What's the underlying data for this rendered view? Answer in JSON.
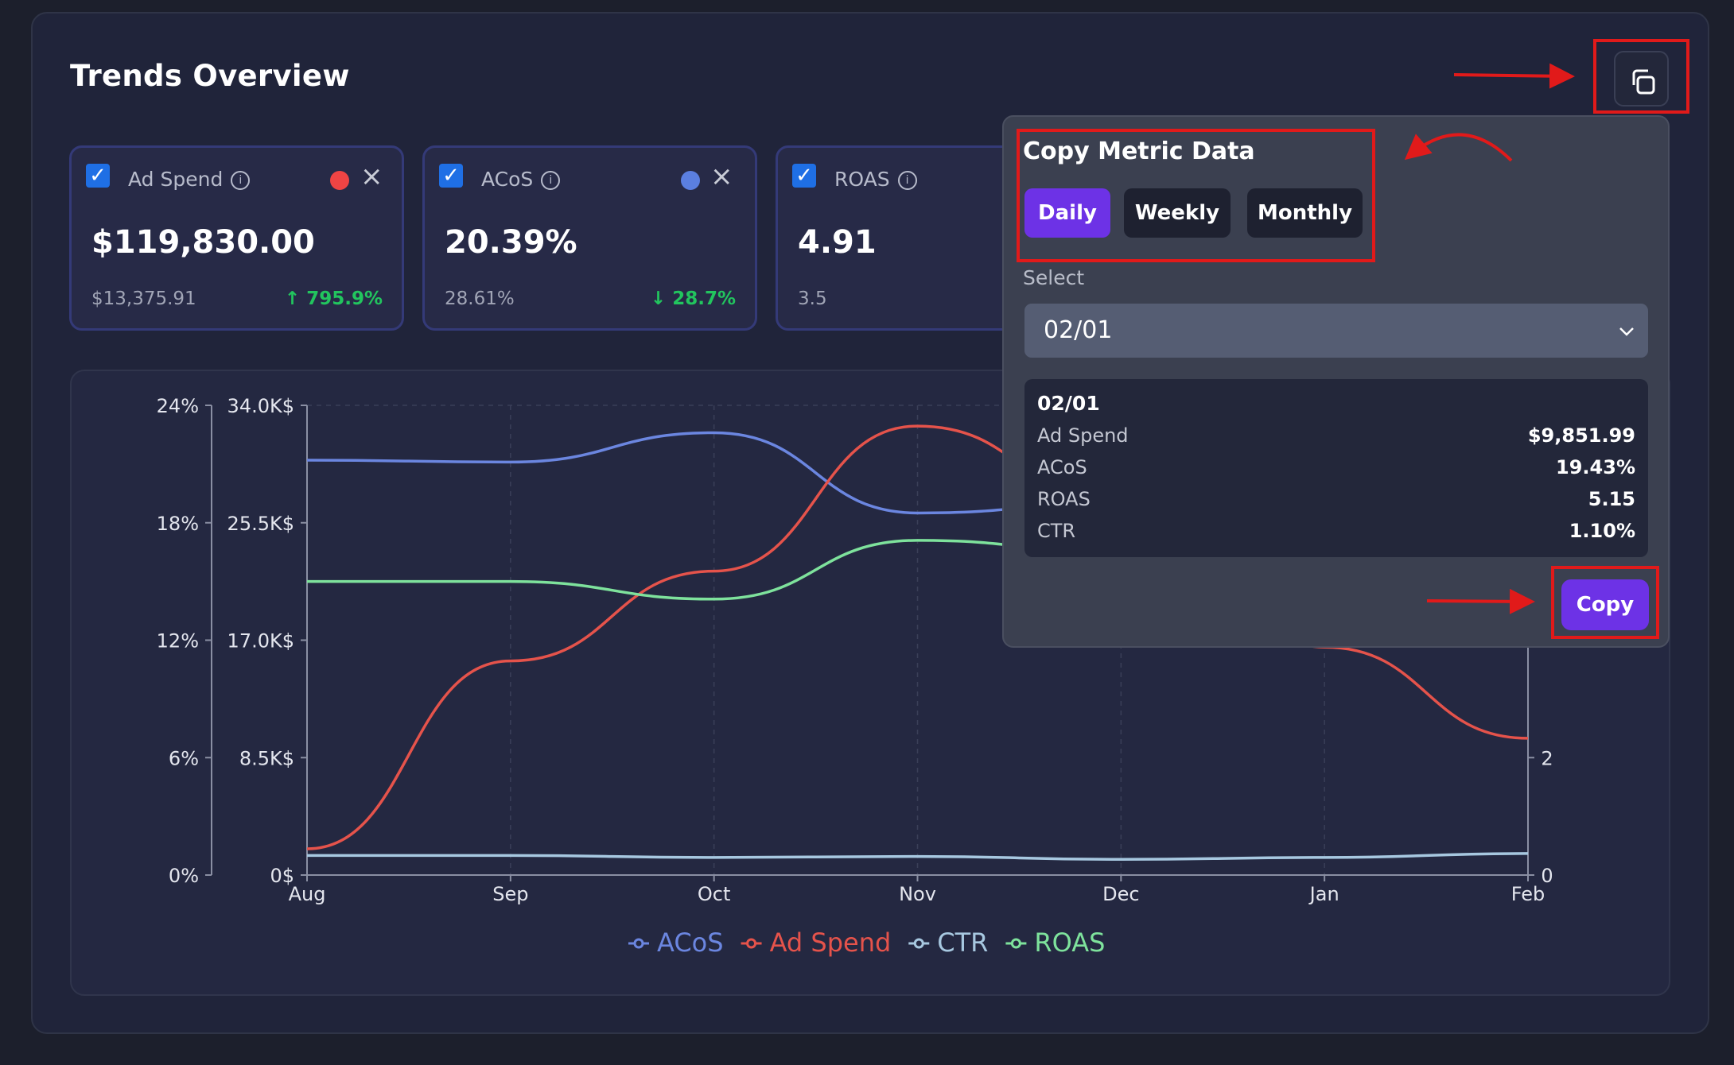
{
  "header": {
    "title": "Trends Overview"
  },
  "cards": [
    {
      "label": "Ad Spend",
      "value": "$119,830.00",
      "previous": "$13,375.91",
      "delta": "↑ 795.9%",
      "dot_color": "#ef4444"
    },
    {
      "label": "ACoS",
      "value": "20.39%",
      "previous": "28.61%",
      "delta": "↓ 28.7%",
      "dot_color": "#5b7fe0"
    },
    {
      "label": "ROAS",
      "value": "4.91",
      "previous": "3.5"
    }
  ],
  "copy_popover": {
    "title": "Copy Metric Data",
    "periods": [
      "Daily",
      "Weekly",
      "Monthly"
    ],
    "active_period": "Daily",
    "select_label": "Select",
    "selected": "02/01",
    "detail_date": "02/01",
    "rows": [
      {
        "label": "Ad Spend",
        "value": "$9,851.99"
      },
      {
        "label": "ACoS",
        "value": "19.43%"
      },
      {
        "label": "ROAS",
        "value": "5.15"
      },
      {
        "label": "CTR",
        "value": "1.10%"
      }
    ],
    "copy_label": "Copy"
  },
  "icons": {
    "copy": "copy-icon",
    "chevron": "chevron-down-icon",
    "info": "info-icon",
    "close": "close-icon",
    "check": "checkmark-icon"
  },
  "colors": {
    "acos": "#6b86e0",
    "ad_spend": "#e5534b",
    "ctr": "#a7c8e0",
    "roas": "#7ee29c",
    "accent": "#6d32e6",
    "annotation": "#e11a1a"
  },
  "chart_data": {
    "type": "line",
    "categories": [
      "Aug",
      "Sep",
      "Oct",
      "Nov",
      "Dec",
      "Jan",
      "Feb"
    ],
    "y_left_pct": {
      "ticks": [
        "0%",
        "6%",
        "12%",
        "18%",
        "24%"
      ],
      "range": [
        0,
        24
      ]
    },
    "y_left_money": {
      "ticks": [
        "0$",
        "8.5K$",
        "17.0K$",
        "25.5K$",
        "34.0K$"
      ],
      "range": [
        0,
        34000
      ]
    },
    "y_right": {
      "ticks": [
        "0",
        "2"
      ],
      "range": [
        0,
        8
      ]
    },
    "legend": [
      "ACoS",
      "Ad Spend",
      "CTR",
      "ROAS"
    ],
    "series": [
      {
        "name": "ACoS",
        "axis": "pct",
        "color": "#6b86e0",
        "values": [
          21.2,
          21.1,
          22.6,
          18.5,
          19.0,
          null,
          null
        ]
      },
      {
        "name": "Ad Spend",
        "axis": "money",
        "color": "#e5534b",
        "values": [
          1900,
          15500,
          22000,
          32500,
          27000,
          16500,
          9900
        ]
      },
      {
        "name": "CTR",
        "axis": "pct",
        "color": "#a7c8e0",
        "values": [
          1.0,
          1.0,
          0.9,
          0.95,
          0.8,
          0.9,
          1.1
        ]
      },
      {
        "name": "ROAS",
        "axis": "right",
        "color": "#7ee29c",
        "values": [
          5.0,
          5.0,
          4.7,
          5.7,
          5.5,
          null,
          null
        ]
      }
    ]
  }
}
